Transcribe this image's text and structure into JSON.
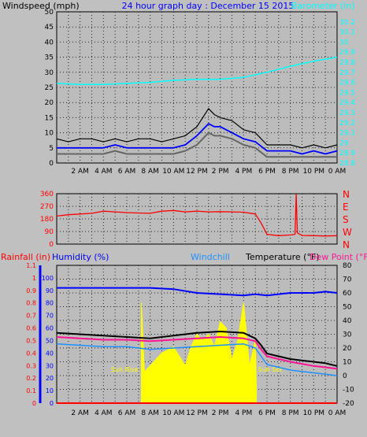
{
  "header": {
    "left_label": "Windspeed (mph)",
    "title": "24 hour graph day : December 15 2015",
    "right_label": "Barometer (in)"
  },
  "colors": {
    "background": "#c0c0c0",
    "plot_bg": "#bcbcbc",
    "title": "#0000ff",
    "barometer": "#00ffff",
    "gust": "#000000",
    "wind": "#0000ff",
    "wind_avg": "#666666",
    "direction": "#ff0000",
    "temperature": "#000000",
    "dewpoint": "#ff1493",
    "windchill": "#1e90ff",
    "humidity": "#0000ff",
    "rain": "#ff0000",
    "solar": "#ffff00"
  },
  "chart_data": [
    {
      "type": "line",
      "name": "wind-barometer",
      "ylabel_left": "Windspeed (mph)",
      "ylabel_right": "Barometer (in)",
      "ylim": [
        0,
        50
      ],
      "y_ticks": [
        0,
        5,
        10,
        15,
        20,
        25,
        30,
        35,
        40,
        45,
        50
      ],
      "y2lim": [
        28.8,
        30.3
      ],
      "y2_ticks": [
        "28.8",
        "28.9",
        "29",
        "29.1",
        "29.2",
        "29.3",
        "29.4",
        "29.5",
        "29.6",
        "29.7",
        "29.8",
        "29.9",
        "30",
        "30.1",
        "30.2"
      ],
      "x_ticks": [
        "2 AM",
        "4 AM",
        "6 AM",
        "8 AM",
        "10 AM",
        "12 PM",
        "2 PM",
        "4 PM",
        "6 PM",
        "8 PM",
        "10 PM",
        "0 AM"
      ],
      "grid": true,
      "series": [
        {
          "name": "Barometer (in)",
          "x": [
            0,
            2,
            4,
            6,
            8,
            10,
            12,
            14,
            16,
            18,
            20,
            22,
            24
          ],
          "values": [
            29.59,
            29.58,
            29.58,
            29.59,
            29.6,
            29.62,
            29.63,
            29.63,
            29.65,
            29.7,
            29.76,
            29.81,
            29.85
          ]
        },
        {
          "x": [
            0,
            1,
            2,
            3,
            4,
            5,
            6,
            7,
            8,
            9,
            10,
            11,
            12,
            12.5,
            13,
            13.5,
            14,
            15,
            16,
            17,
            18,
            19,
            20,
            21,
            22,
            23,
            24
          ],
          "values": [
            8,
            7,
            8,
            8,
            7,
            8,
            7,
            8,
            8,
            7,
            8,
            9,
            12,
            15,
            18,
            16,
            15,
            14,
            11,
            10,
            6,
            6,
            6,
            5,
            6,
            5,
            6
          ]
        },
        {
          "x": [
            0,
            1,
            2,
            3,
            4,
            5,
            6,
            7,
            8,
            9,
            10,
            11,
            12,
            12.5,
            13,
            13.5,
            14,
            15,
            16,
            17,
            18,
            19,
            20,
            21,
            22,
            23,
            24
          ],
          "values": [
            5,
            5,
            5,
            5,
            5,
            6,
            5,
            5,
            5,
            5,
            5,
            6,
            9,
            11,
            13,
            12,
            12,
            10,
            8,
            7,
            4,
            4,
            4,
            3,
            4,
            3,
            4
          ]
        },
        {
          "x": [
            0,
            1,
            2,
            3,
            4,
            5,
            6,
            7,
            8,
            9,
            10,
            11,
            12,
            12.5,
            13,
            13.5,
            14,
            15,
            16,
            17,
            18,
            19,
            20,
            21,
            22,
            23,
            24
          ],
          "values": [
            3,
            3,
            3,
            3,
            3,
            4,
            3,
            3,
            3,
            3,
            3,
            4,
            6,
            8,
            10,
            9,
            9,
            8,
            6,
            5,
            2,
            2,
            2,
            2,
            2,
            2,
            2
          ]
        }
      ]
    },
    {
      "type": "line",
      "name": "wind-direction",
      "ylim": [
        0,
        360
      ],
      "y_ticks": [
        0,
        90,
        180,
        270,
        360
      ],
      "right_labels": [
        "N",
        "W",
        "S",
        "E",
        "N"
      ],
      "grid": true,
      "series": [
        {
          "x": [
            0,
            1,
            2,
            3,
            4,
            5,
            6,
            7,
            8,
            9,
            10,
            11,
            12,
            13,
            14,
            15,
            16,
            17,
            17.5,
            18,
            19,
            20,
            20.4,
            20.5,
            20.6,
            21,
            22,
            23,
            24
          ],
          "values": [
            200,
            210,
            215,
            220,
            235,
            230,
            225,
            222,
            220,
            235,
            240,
            230,
            235,
            230,
            232,
            230,
            228,
            215,
            150,
            70,
            60,
            65,
            70,
            355,
            80,
            62,
            60,
            58,
            60
          ]
        }
      ]
    },
    {
      "type": "line",
      "name": "temperature-humidity-rain",
      "labels": {
        "rainfall": "Rainfall (in)",
        "humidity": "Humidity (%)",
        "windchill": "Windchill",
        "temperature": "Temperature (°F)",
        "dewpoint": "Dew Point (°F)"
      },
      "rain_ylim": [
        0,
        1.1
      ],
      "rain_ticks": [
        "0",
        "0.1",
        "0.2",
        "0.3",
        "0.4",
        "0.5",
        "0.6",
        "0.7",
        "0.8",
        "0.9",
        "1",
        "1.1"
      ],
      "humidity_ylim": [
        0,
        110
      ],
      "humidity_ticks": [
        "0",
        "10",
        "20",
        "30",
        "40",
        "50",
        "60",
        "70",
        "80",
        "90",
        "100"
      ],
      "temp_ylim": [
        -20,
        80
      ],
      "temp_ticks": [
        "-20",
        "-10",
        "0",
        "10",
        "20",
        "30",
        "40",
        "50",
        "60",
        "70",
        "80"
      ],
      "sun_labels": {
        "rise": "Sun Rise",
        "set": "Sun Set"
      },
      "grid": true,
      "series": [
        {
          "name": "Temperature (°F)",
          "x": [
            0,
            2,
            4,
            6,
            8,
            10,
            12,
            14,
            16,
            16.5,
            17,
            17.5,
            18,
            19,
            20,
            22,
            23,
            24
          ],
          "values": [
            31,
            30,
            29,
            28,
            27,
            29,
            31,
            32,
            31,
            29,
            27,
            22,
            16,
            14,
            12,
            10,
            9,
            7
          ]
        },
        {
          "name": "Dew Point (°F)",
          "x": [
            0,
            2,
            4,
            6,
            8,
            10,
            12,
            14,
            16,
            17,
            17.5,
            18,
            20,
            22,
            24
          ],
          "values": [
            28,
            27,
            26,
            26,
            25,
            26,
            27,
            28,
            27,
            25,
            19,
            14,
            10,
            7,
            5
          ]
        },
        {
          "name": "Windchill",
          "x": [
            0,
            2,
            4,
            6,
            8,
            10,
            12,
            14,
            16,
            17,
            17.5,
            18,
            20,
            22,
            24
          ],
          "values": [
            23,
            22,
            21,
            21,
            19,
            20,
            21,
            22,
            23,
            20,
            14,
            8,
            4,
            2,
            0
          ]
        },
        {
          "name": "Humidity (%)",
          "x": [
            0,
            2,
            4,
            6,
            8,
            10,
            12,
            14,
            16,
            17,
            18,
            20,
            22,
            23,
            24
          ],
          "values": [
            92,
            92,
            92,
            92,
            92,
            91,
            88,
            87,
            86,
            87,
            86,
            88,
            88,
            89,
            88
          ]
        },
        {
          "name": "Rainfall (in)",
          "x": [
            0,
            24
          ],
          "values": [
            0,
            0
          ]
        },
        {
          "x": [
            7.25,
            7.5,
            8,
            9,
            10,
            11,
            11.5,
            12,
            12.5,
            13,
            13.5,
            14,
            14.5,
            15,
            15.5,
            16,
            16.5,
            17,
            17.1
          ],
          "values": [
            0.8,
            0.25,
            0.3,
            0.4,
            0.45,
            0.3,
            0.45,
            0.55,
            0.5,
            0.55,
            0.45,
            0.65,
            0.6,
            0.35,
            0.5,
            0.8,
            0.3,
            0.5,
            0.1
          ]
        }
      ]
    }
  ]
}
